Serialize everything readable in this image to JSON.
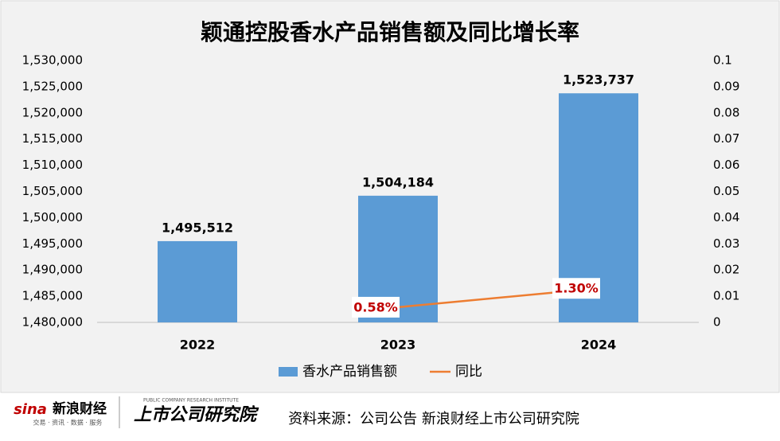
{
  "chart_data": {
    "type": "bar_line",
    "title": "颖通控股香水产品销售额及同比增长率",
    "categories": [
      "2022",
      "2023",
      "2024"
    ],
    "series": [
      {
        "name": "香水产品销售额",
        "color": "#5b9bd5",
        "type": "bar",
        "values": [
          1495512,
          1504184,
          1523737
        ],
        "value_labels": [
          "1,495,512",
          "1,504,184",
          "1,523,737"
        ]
      },
      {
        "name": "同比",
        "color": "#ed7d31",
        "type": "line",
        "axis": "y2",
        "values": [
          null,
          0.0058,
          0.013
        ],
        "value_labels": [
          null,
          "0.58%",
          "1.30%"
        ]
      }
    ],
    "ylim": [
      1480000,
      1530000
    ],
    "yticks": [
      {
        "value": 1480000,
        "label": "1,480,000"
      },
      {
        "value": 1485000,
        "label": "1,485,000"
      },
      {
        "value": 1490000,
        "label": "1,490,000"
      },
      {
        "value": 1495000,
        "label": "1,495,000"
      },
      {
        "value": 1500000,
        "label": "1,500,000"
      },
      {
        "value": 1505000,
        "label": "1,505,000"
      },
      {
        "value": 1510000,
        "label": "1,510,000"
      },
      {
        "value": 1515000,
        "label": "1,515,000"
      },
      {
        "value": 1520000,
        "label": "1,520,000"
      },
      {
        "value": 1525000,
        "label": "1,525,000"
      },
      {
        "value": 1530000,
        "label": "1,530,000"
      }
    ],
    "y2lim": [
      0,
      0.1
    ],
    "y2ticks": [
      0,
      0.01,
      0.02,
      0.03,
      0.04,
      0.05,
      0.06,
      0.07,
      0.08,
      0.09,
      0.1
    ],
    "legend": "bottom",
    "source": "资料来源：公司公告 新浪财经上市公司研究院",
    "logos": [
      "sina",
      "新浪财经",
      "交易 · 资讯 · 数据 · 服务",
      "PUBLIC COMPANY RESEARCH INSTITUTE",
      "上市公司研究院"
    ]
  }
}
